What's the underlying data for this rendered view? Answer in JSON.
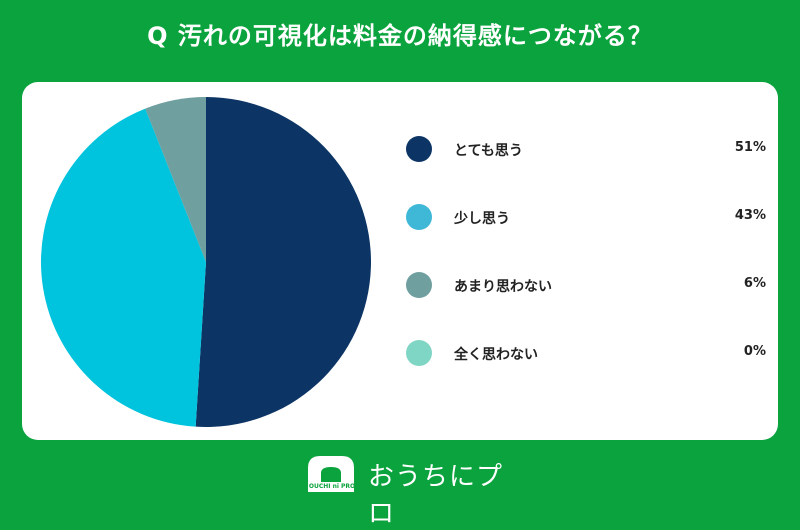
{
  "header": {
    "title": "Q 汚れの可視化は料金の納得感につながる？"
  },
  "chart_data": {
    "type": "pie",
    "title": "",
    "legend_position": "right",
    "slices": [
      {
        "label": "とても思う",
        "value": 51,
        "display": "51%",
        "color": "#0c3565"
      },
      {
        "label": "少し思う",
        "value": 43,
        "display": "43%",
        "color": "#00c3dd"
      },
      {
        "label": "あまり思わない",
        "value": 6,
        "display": "6%",
        "color": "#6f9f9f"
      },
      {
        "label": "全く思わない",
        "value": 0,
        "display": "0%",
        "color": "#7fd6c4"
      }
    ],
    "legend_colors": [
      "#0c3565",
      "#3fb8d8",
      "#6f9f9f",
      "#7fd6c4"
    ]
  },
  "footer": {
    "logo_text": "OUCHI ni PRO",
    "brand": "おうちにプロ"
  },
  "colors": {
    "background": "#0aa33d",
    "card": "#ffffff"
  }
}
